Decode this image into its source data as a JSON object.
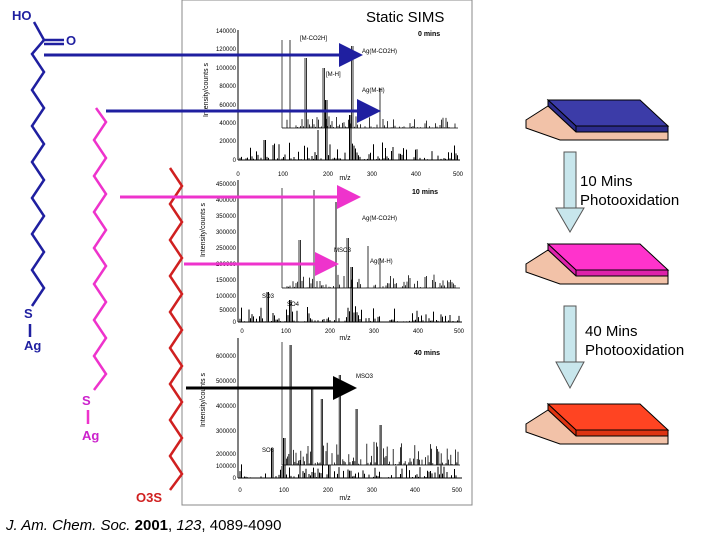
{
  "title": "Static SIMS",
  "steps": [
    {
      "line1": "10 Mins",
      "line2": "Photooxidation"
    },
    {
      "line1": "40 Mins",
      "line2": "Photooxidation"
    }
  ],
  "citation": {
    "journal": "J. Am. Chem. Soc.",
    "year": "2001",
    "volume": "123",
    "pages": "4089-4090"
  },
  "molecules": {
    "blue": {
      "top_left": "HO",
      "top_right": "O",
      "s": "S",
      "ag": "Ag"
    },
    "magenta": {
      "s": "S",
      "ag": "Ag"
    },
    "red": {
      "end": "O3S"
    }
  },
  "spectra": [
    {
      "time_label": "0 mins",
      "ylabel": "Intensity/counts s",
      "xlabel": "m/z",
      "y_ticks": [
        "140000",
        "120000",
        "100000",
        "80000",
        "60000",
        "40000",
        "20000",
        "0"
      ],
      "x_ticks": [
        "0",
        "100",
        "200",
        "300",
        "400",
        "500"
      ],
      "peak_labels": [
        "[M-CO2H]",
        "Ag(M-CO2H)",
        "[M-H]",
        "Ag(M-H)"
      ]
    },
    {
      "time_label": "10 mins",
      "ylabel": "Intensity/counts s",
      "xlabel": "m/z",
      "y_ticks": [
        "450000",
        "400000",
        "350000",
        "300000",
        "250000",
        "200000",
        "150000",
        "100000",
        "50000",
        "0"
      ],
      "x_ticks": [
        "0",
        "100",
        "200",
        "300",
        "400",
        "500"
      ],
      "peak_labels": [
        "Ag(M-CO2H)",
        "MSO3",
        "Ag(M-H)",
        "SO3",
        "SO4"
      ]
    },
    {
      "time_label": "40 mins",
      "ylabel": "Intensity/counts s",
      "xlabel": "m/z",
      "y_ticks": [
        "600000",
        "500000",
        "400000",
        "300000",
        "200000",
        "100000",
        "0"
      ],
      "x_ticks": [
        "0",
        "100",
        "200",
        "300",
        "400",
        "500"
      ],
      "peak_labels": [
        "MSO3",
        "SO3"
      ]
    }
  ],
  "colors": {
    "blue": "#1f1fa0",
    "magenta": "#ee33cc",
    "red": "#d02020",
    "slab_blue": "#3c3ca8",
    "slab_pink": "#ff33cc",
    "slab_red": "#ff4422",
    "slab_base": "#f2c2a8"
  }
}
